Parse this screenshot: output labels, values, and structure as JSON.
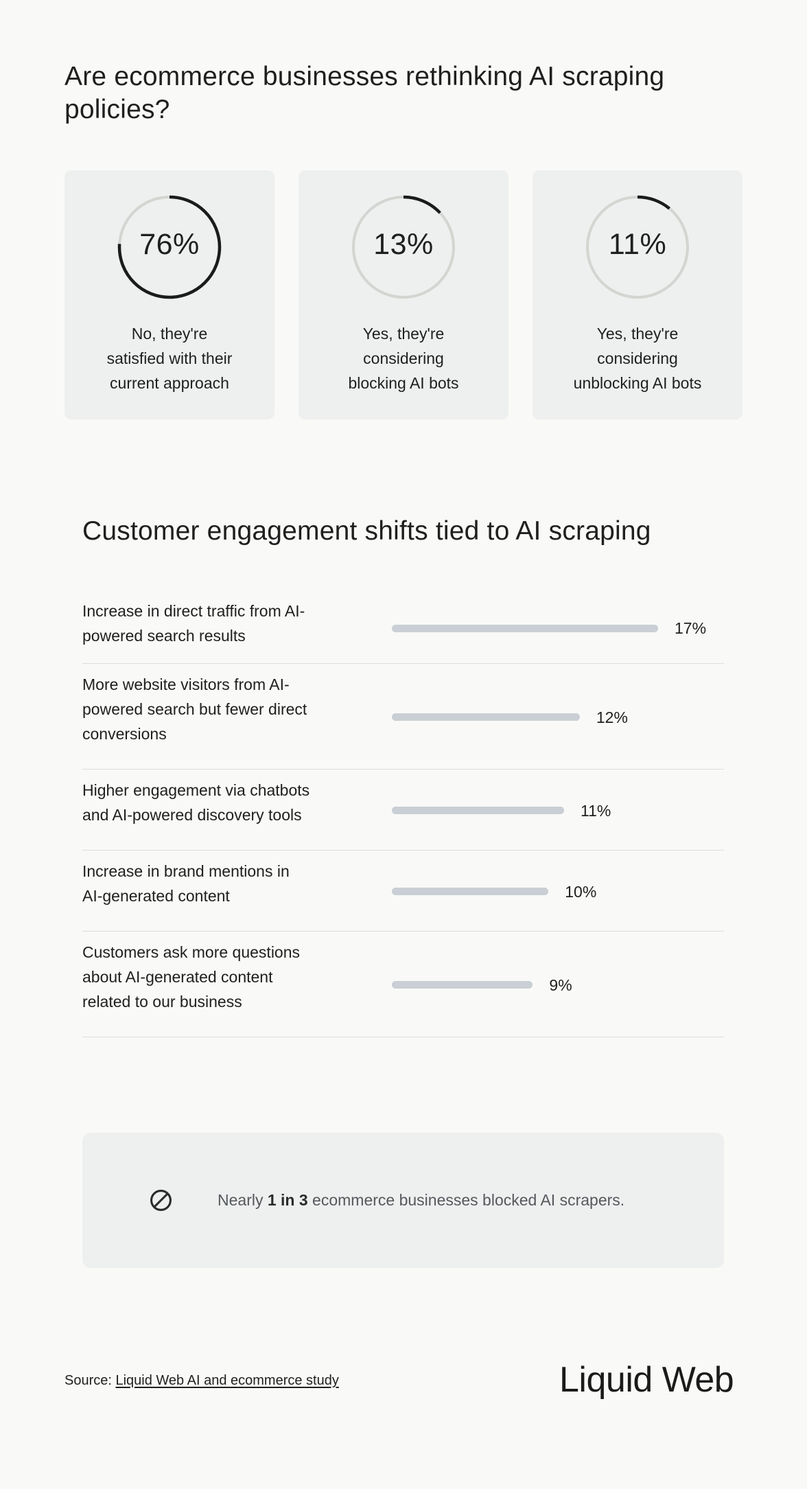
{
  "title": "Are ecommerce businesses rethinking AI scraping policies?",
  "colors": {
    "ring_active": "#1b1b1b",
    "ring_track": "#d4d5d1",
    "bar": "#c9cfd4"
  },
  "chart_data": [
    {
      "type": "pie",
      "title": "Are ecommerce businesses rethinking AI scraping policies?",
      "slices": [
        {
          "label": "No, they're satisfied with their current approach",
          "value": 76,
          "display": "76%"
        },
        {
          "label": "Yes, they're considering blocking AI bots",
          "value": 13,
          "display": "13%"
        },
        {
          "label": "Yes, they're considering unblocking AI bots",
          "value": 11,
          "display": "11%"
        }
      ]
    },
    {
      "type": "bar",
      "title": "Customer engagement shifts tied to AI scraping",
      "categories": [
        "Increase in direct traffic from AI-powered search results",
        "More website visitors from AI-powered search but fewer direct conversions",
        "Higher engagement via chatbots and AI-powered discovery tools",
        "Increase in brand mentions in AI-generated content",
        "Customers ask more questions about AI-generated content related to our business"
      ],
      "values": [
        17,
        12,
        11,
        10,
        9
      ],
      "value_labels": [
        "17%",
        "12%",
        "11%",
        "10%",
        "9%"
      ],
      "unit": "%"
    }
  ],
  "callout": {
    "icon": "block-icon",
    "prefix": "Nearly ",
    "bold": "1 in 3",
    "suffix": " ecommerce businesses blocked AI scrapers."
  },
  "footer": {
    "source_prefix": "Source: ",
    "source_link": "Liquid Web AI and ecommerce study",
    "logo": "Liquid Web"
  }
}
